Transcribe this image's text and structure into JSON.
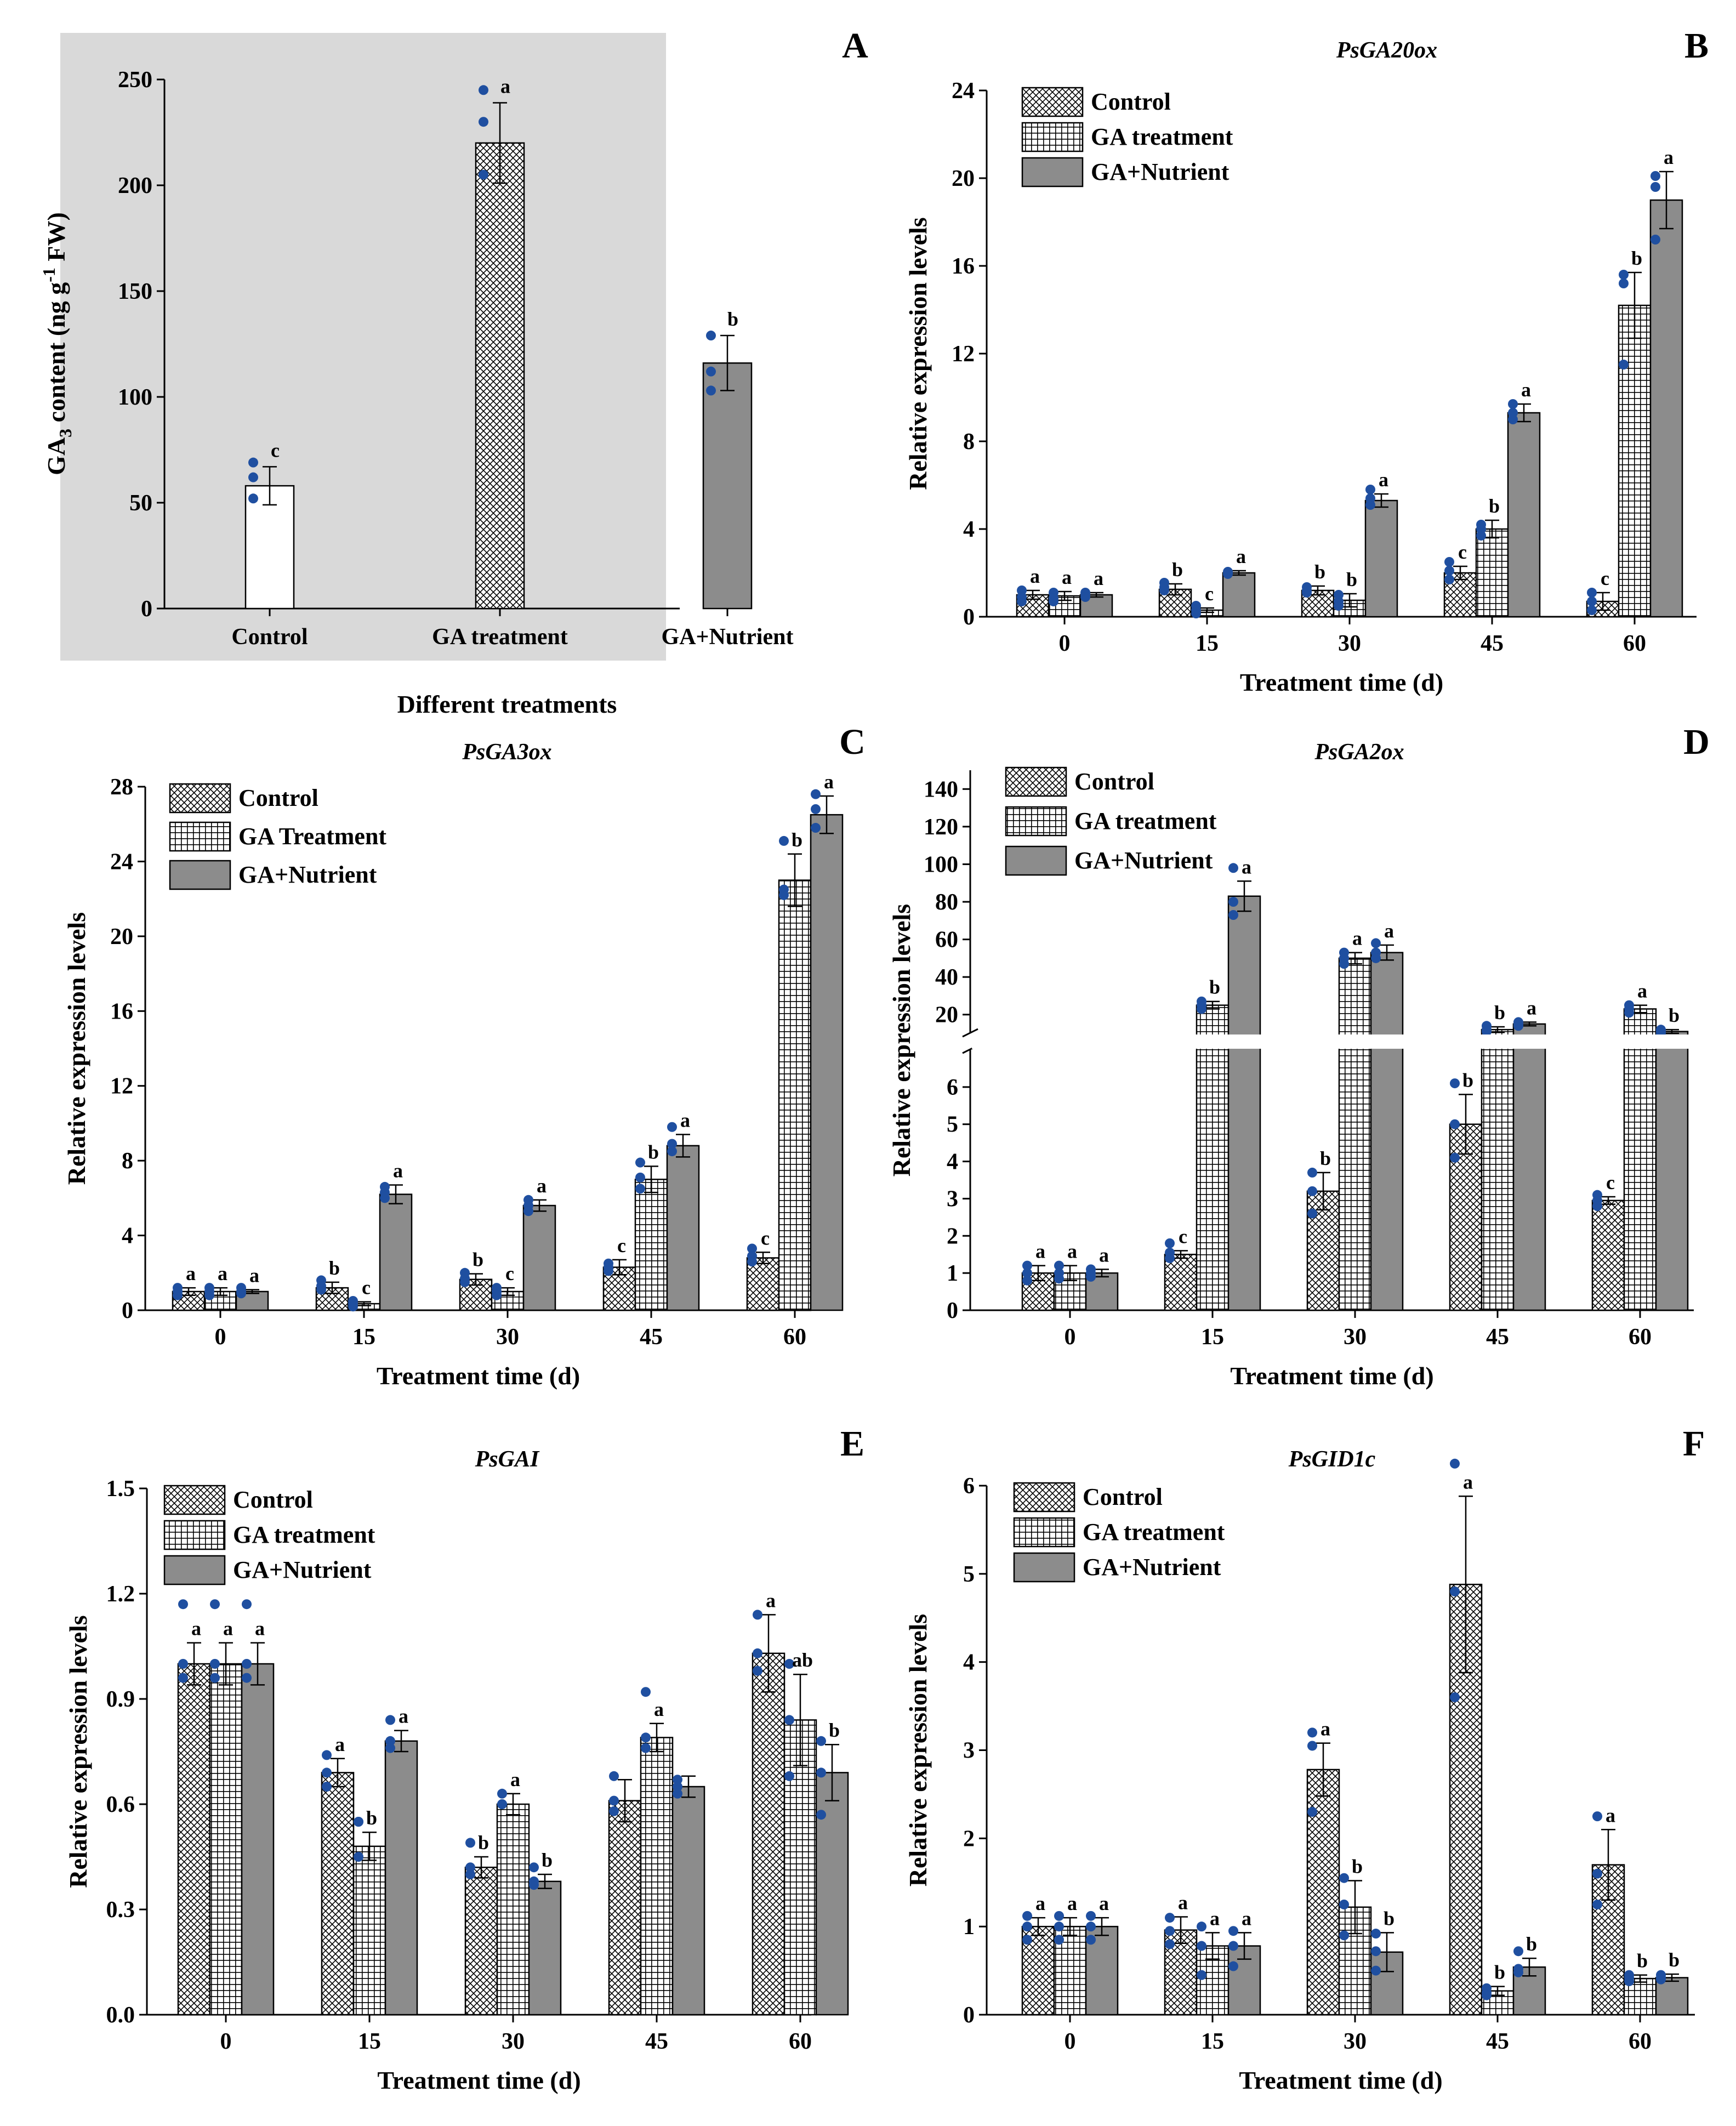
{
  "colors": {
    "control_fill": "#ffffff",
    "ga_fill": "#ffffff",
    "ga_nutrient_fill": "#8c8c8c",
    "dot": "#1f4fa0",
    "panel_a_bg": "#d9d9d9",
    "axis": "#000000"
  },
  "chart_data": [
    {
      "id": "A",
      "panel_label": "A",
      "type": "bar",
      "title": "",
      "xlabel": "Different treatments",
      "ylabel": "GA3 content (ng g-1 FW)",
      "ylabel_parts": [
        "GA",
        "3",
        " content (ng g",
        "-1",
        " FW)"
      ],
      "ylim": [
        0,
        250
      ],
      "yticks": [
        0,
        50,
        100,
        150,
        200,
        250
      ],
      "categories": [
        "Control",
        "GA treatment",
        "GA+Nutrient"
      ],
      "values": [
        58,
        220,
        116
      ],
      "errors": [
        9,
        19,
        13
      ],
      "letters": [
        "c",
        "a",
        "b"
      ],
      "points": [
        [
          69,
          62,
          52
        ],
        [
          245,
          230,
          205
        ],
        [
          129,
          112,
          103
        ]
      ]
    },
    {
      "id": "B",
      "panel_label": "B",
      "type": "bar",
      "title": "PsGA20ox",
      "xlabel": "Treatment time (d)",
      "ylabel": "Relative expression levels",
      "ylim": [
        0,
        24
      ],
      "yticks": [
        0,
        4,
        8,
        12,
        16,
        20,
        24
      ],
      "categories": [
        "0",
        "15",
        "30",
        "45",
        "60"
      ],
      "legend": [
        "Control",
        "GA treatment",
        "GA+Nutrient"
      ],
      "series": [
        {
          "name": "Control",
          "values": [
            1.0,
            1.25,
            1.2,
            2.0,
            0.7
          ],
          "errors": [
            0.2,
            0.25,
            0.2,
            0.3,
            0.4
          ],
          "letters": [
            "a",
            "b",
            "b",
            "c",
            "c"
          ],
          "points": [
            [
              1.2,
              0.9,
              0.7
            ],
            [
              1.55,
              1.35,
              1.2
            ],
            [
              1.35,
              1.2,
              1.1
            ],
            [
              2.5,
              2.1,
              1.7
            ],
            [
              1.1,
              0.7,
              0.3
            ]
          ]
        },
        {
          "name": "GA treatment",
          "values": [
            0.95,
            0.3,
            0.75,
            4.0,
            14.2
          ],
          "errors": [
            0.2,
            0.1,
            0.3,
            0.4,
            1.5
          ],
          "letters": [
            "a",
            "c",
            "b",
            "b",
            "b"
          ],
          "points": [
            [
              1.1,
              0.85,
              0.7
            ],
            [
              0.5,
              0.3,
              0.15
            ],
            [
              1.0,
              0.7,
              0.5
            ],
            [
              4.2,
              4.0,
              3.7
            ],
            [
              15.6,
              15.2,
              11.5
            ]
          ]
        },
        {
          "name": "GA+Nutrient",
          "values": [
            1.0,
            2.0,
            5.3,
            9.3,
            19.0
          ],
          "errors": [
            0.1,
            0.1,
            0.3,
            0.4,
            1.3
          ],
          "letters": [
            "a",
            "a",
            "a",
            "a",
            "a"
          ],
          "points": [
            [
              1.1,
              1.0,
              0.9
            ],
            [
              2.05,
              2.0,
              1.95
            ],
            [
              5.8,
              5.4,
              5.1
            ],
            [
              9.7,
              9.3,
              9.0
            ],
            [
              20.1,
              19.6,
              17.2
            ]
          ]
        }
      ]
    },
    {
      "id": "C",
      "panel_label": "C",
      "type": "bar",
      "title": "PsGA3ox",
      "xlabel": "Treatment time (d)",
      "ylabel": "Relative expression levels",
      "ylim": [
        0,
        28
      ],
      "yticks": [
        0,
        4,
        8,
        12,
        16,
        20,
        24,
        28
      ],
      "categories": [
        "0",
        "15",
        "30",
        "45",
        "60"
      ],
      "legend": [
        "Control",
        "GA Treatment",
        "GA+Nutrient"
      ],
      "series": [
        {
          "name": "Control",
          "values": [
            1.0,
            1.2,
            1.65,
            2.3,
            2.8
          ],
          "errors": [
            0.2,
            0.3,
            0.3,
            0.4,
            0.3
          ],
          "letters": [
            "a",
            "b",
            "b",
            "c",
            "c"
          ],
          "points": [
            [
              1.2,
              1.0,
              0.8
            ],
            [
              1.6,
              1.3,
              1.1
            ],
            [
              2.0,
              1.7,
              1.5
            ],
            [
              2.5,
              2.3,
              2.1
            ],
            [
              3.3,
              2.9,
              2.6
            ]
          ]
        },
        {
          "name": "GA Treatment",
          "values": [
            1.0,
            0.35,
            1.0,
            7.0,
            23.0
          ],
          "errors": [
            0.2,
            0.1,
            0.2,
            0.7,
            1.4
          ],
          "letters": [
            "a",
            "c",
            "c",
            "b",
            "b"
          ],
          "points": [
            [
              1.2,
              1.0,
              0.8
            ],
            [
              0.5,
              0.35,
              0.2
            ],
            [
              1.2,
              1.0,
              0.8
            ],
            [
              7.9,
              7.1,
              6.5
            ],
            [
              25.1,
              22.5,
              22.2
            ]
          ]
        },
        {
          "name": "GA+Nutrient",
          "values": [
            1.0,
            6.2,
            5.6,
            8.8,
            26.5
          ],
          "errors": [
            0.1,
            0.5,
            0.3,
            0.6,
            1.0
          ],
          "letters": [
            "a",
            "a",
            "a",
            "a",
            "a"
          ],
          "points": [
            [
              1.2,
              1.0,
              0.9
            ],
            [
              6.6,
              6.3,
              6.0
            ],
            [
              5.9,
              5.6,
              5.3
            ],
            [
              9.8,
              8.9,
              8.5
            ],
            [
              27.6,
              26.8,
              25.8
            ]
          ]
        }
      ]
    },
    {
      "id": "D",
      "panel_label": "D",
      "type": "bar",
      "title": "PsGA2ox",
      "xlabel": "Treatment time (d)",
      "ylabel": "Relative expression levels",
      "axis_break": {
        "lower_max": 7,
        "upper_min": 10,
        "upper_max": 150
      },
      "yticks_lower": [
        0,
        1,
        2,
        3,
        4,
        5,
        6
      ],
      "yticks_upper": [
        20,
        40,
        60,
        80,
        100,
        120,
        140
      ],
      "categories": [
        "0",
        "15",
        "30",
        "45",
        "60"
      ],
      "legend": [
        "Control",
        "GA treatment",
        "GA+Nutrient"
      ],
      "series": [
        {
          "name": "Control",
          "values": [
            1.0,
            1.5,
            3.2,
            5.0,
            2.95
          ],
          "errors": [
            0.2,
            0.1,
            0.5,
            0.8,
            0.1
          ],
          "letters": [
            "a",
            "c",
            "b",
            "b",
            "c"
          ],
          "points": [
            [
              1.2,
              1.0,
              0.8
            ],
            [
              1.8,
              1.55,
              1.4
            ],
            [
              3.7,
              3.2,
              2.6
            ],
            [
              6.1,
              5.0,
              4.1
            ],
            [
              3.1,
              2.95,
              2.8
            ]
          ]
        },
        {
          "name": "GA treatment",
          "values": [
            1.0,
            25,
            50,
            12,
            23
          ],
          "errors": [
            0.2,
            2,
            3,
            1.5,
            2
          ],
          "letters": [
            "a",
            "b",
            "a",
            "b",
            "a"
          ],
          "points": [
            [
              1.2,
              1.0,
              0.85
            ],
            [
              27,
              25,
              23
            ],
            [
              53,
              50,
              47
            ],
            [
              14,
              12,
              11
            ],
            [
              25,
              23,
              21
            ]
          ]
        },
        {
          "name": "GA+Nutrient",
          "values": [
            1.0,
            83,
            53,
            15,
            11
          ],
          "errors": [
            0.1,
            8,
            4,
            1,
            1
          ],
          "letters": [
            "a",
            "a",
            "a",
            "a",
            "b"
          ],
          "points": [
            [
              1.1,
              1.0,
              0.9
            ],
            [
              98,
              80,
              73
            ],
            [
              58,
              53,
              50
            ],
            [
              16,
              15,
              14
            ],
            [
              12,
              11,
              10
            ]
          ]
        }
      ]
    },
    {
      "id": "E",
      "panel_label": "E",
      "type": "bar",
      "title": "PsGAI",
      "xlabel": "Treatment time (d)",
      "ylabel": "Relative expression levels",
      "ylim": [
        0,
        1.5
      ],
      "yticks": [
        "0.0",
        "0.3",
        "0.6",
        "0.9",
        "1.2",
        "1.5"
      ],
      "categories": [
        "0",
        "15",
        "30",
        "45",
        "60"
      ],
      "legend": [
        "Control",
        "GA treatment",
        "GA+Nutrient"
      ],
      "series": [
        {
          "name": "Control",
          "values": [
            1.0,
            0.69,
            0.42,
            0.61,
            1.03
          ],
          "errors": [
            0.06,
            0.04,
            0.03,
            0.06,
            0.11
          ],
          "letters": [
            "a",
            "a",
            "b",
            "",
            "a"
          ],
          "points": [
            [
              1.17,
              1.0,
              0.96
            ],
            [
              0.74,
              0.69,
              0.65
            ],
            [
              0.49,
              0.42,
              0.4
            ],
            [
              0.68,
              0.61,
              0.58
            ],
            [
              1.14,
              1.03,
              0.98
            ]
          ]
        },
        {
          "name": "GA treatment",
          "values": [
            1.0,
            0.48,
            0.6,
            0.79,
            0.84
          ],
          "errors": [
            0.06,
            0.04,
            0.03,
            0.04,
            0.13
          ],
          "letters": [
            "a",
            "b",
            "a",
            "a",
            "ab"
          ],
          "points": [
            [
              1.17,
              1.0,
              0.96
            ],
            [
              0.55,
              0.55,
              0.45
            ],
            [
              0.63,
              0.6,
              0.6
            ],
            [
              0.92,
              0.79,
              0.76
            ],
            [
              1.0,
              0.84,
              0.68
            ]
          ]
        },
        {
          "name": "GA+Nutrient",
          "values": [
            1.0,
            0.78,
            0.38,
            0.65,
            0.69
          ],
          "errors": [
            0.06,
            0.03,
            0.02,
            0.03,
            0.08
          ],
          "letters": [
            "a",
            "a",
            "b",
            "",
            "b"
          ],
          "points": [
            [
              1.17,
              1.0,
              0.96
            ],
            [
              0.84,
              0.78,
              0.76
            ],
            [
              0.42,
              0.38,
              0.37
            ],
            [
              0.67,
              0.65,
              0.63
            ],
            [
              0.78,
              0.69,
              0.57
            ]
          ]
        }
      ]
    },
    {
      "id": "F",
      "panel_label": "F",
      "type": "bar",
      "title": "PsGID1c",
      "xlabel": "Treatment time (d)",
      "ylabel": "Relative expression levels",
      "ylim": [
        0,
        6
      ],
      "yticks": [
        0,
        1,
        2,
        3,
        4,
        5,
        6
      ],
      "categories": [
        "0",
        "15",
        "30",
        "45",
        "60"
      ],
      "legend": [
        "Control",
        "GA treatment",
        "GA+Nutrient"
      ],
      "series": [
        {
          "name": "Control",
          "values": [
            1.0,
            0.96,
            2.78,
            4.88,
            1.7
          ],
          "errors": [
            0.1,
            0.15,
            0.3,
            1.0,
            0.4
          ],
          "letters": [
            "a",
            "a",
            "a",
            "a",
            "a"
          ],
          "points": [
            [
              1.12,
              1.0,
              0.85
            ],
            [
              1.1,
              0.95,
              0.8
            ],
            [
              3.2,
              3.05,
              2.3
            ],
            [
              6.25,
              4.8,
              3.6
            ],
            [
              2.25,
              1.6,
              1.25
            ]
          ]
        },
        {
          "name": "GA treatment",
          "values": [
            1.0,
            0.78,
            1.22,
            0.27,
            0.41
          ],
          "errors": [
            0.1,
            0.15,
            0.3,
            0.05,
            0.04
          ],
          "letters": [
            "a",
            "a",
            "b",
            "b",
            "b"
          ],
          "points": [
            [
              1.12,
              1.0,
              0.85
            ],
            [
              1.0,
              0.78,
              0.45
            ],
            [
              1.55,
              1.25,
              0.9
            ],
            [
              0.3,
              0.25,
              0.22
            ],
            [
              0.45,
              0.42,
              0.38
            ]
          ]
        },
        {
          "name": "GA+Nutrient",
          "values": [
            1.0,
            0.78,
            0.71,
            0.54,
            0.42
          ],
          "errors": [
            0.1,
            0.15,
            0.22,
            0.1,
            0.04
          ],
          "letters": [
            "a",
            "a",
            "b",
            "b",
            "b"
          ],
          "points": [
            [
              1.12,
              1.0,
              0.85
            ],
            [
              0.95,
              0.78,
              0.55
            ],
            [
              0.92,
              0.72,
              0.5
            ],
            [
              0.72,
              0.52,
              0.48
            ],
            [
              0.45,
              0.42,
              0.4
            ]
          ]
        }
      ]
    }
  ]
}
